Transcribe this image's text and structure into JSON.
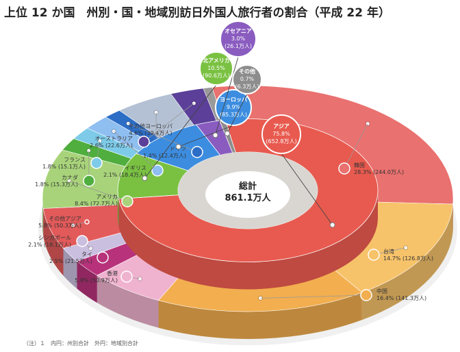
{
  "title": "上位 12 か国　州別・国・地域別訪日外国人旅行者の割合（平成 22 年）",
  "note": "（注）１　内円：州別合計　外円：地域別合計",
  "chart_data": {
    "type": "pie",
    "center_label": [
      "総計",
      "861.1万人"
    ],
    "outer": [
      {
        "name": "韓国",
        "pct": "28.3%",
        "count": "(244.0万人)",
        "value": 28.3,
        "color": "#e9716f"
      },
      {
        "name": "台湾",
        "pct": "14.7%",
        "count": "(126.8万人)",
        "value": 14.7,
        "color": "#f7c36a"
      },
      {
        "name": "中国",
        "pct": "16.4%",
        "count": "(141.3万人)",
        "value": 16.4,
        "color": "#f2ae4f"
      },
      {
        "name": "香港",
        "pct": "5.9%",
        "count": "(50.9万人)",
        "value": 5.9,
        "color": "#f0b3cf"
      },
      {
        "name": "タイ",
        "pct": "2.5%",
        "count": "(21.5万人)",
        "value": 2.5,
        "color": "#b8327b"
      },
      {
        "name": "シンガポール",
        "pct": "2.1%",
        "count": "(18.1万人)",
        "value": 2.1,
        "color": "#cbbfe0"
      },
      {
        "name": "その他アジア",
        "pct": "5.8%",
        "count": "(50.3万人)",
        "value": 5.8,
        "color": "#e25a5a"
      },
      {
        "name": "アメリカ",
        "pct": "8.4%",
        "count": "(72.7万人)",
        "value": 8.4,
        "color": "#a8d37a"
      },
      {
        "name": "カナダ",
        "pct": "1.8%",
        "count": "(15.3万人)",
        "value": 1.8,
        "color": "#4fae3e"
      },
      {
        "name": "フランス",
        "pct": "1.8%",
        "count": "(15.1万人)",
        "value": 1.8,
        "color": "#7dcbe8"
      },
      {
        "name": "イギリス",
        "pct": "2.1%",
        "count": "(18.4万人)",
        "value": 2.1,
        "color": "#8fbef0"
      },
      {
        "name": "ドイツ",
        "pct": "1.4%",
        "count": "(12.4万人)",
        "value": 1.4,
        "color": "#2c6dc6"
      },
      {
        "name": "その他ヨーロッパ",
        "pct": "4.6%",
        "count": "(39.4万人)",
        "value": 4.6,
        "color": "#b4c1d4"
      },
      {
        "name": "オーストラリア",
        "pct": "2.6%",
        "count": "(22.6万人)",
        "value": 2.6,
        "color": "#5b3f98"
      },
      {
        "name": "その他",
        "pct": "0.7%",
        "count": "(6.3万人)",
        "value": 0.7,
        "color": "#9a9a9a"
      }
    ],
    "inner": [
      {
        "name": "アジア",
        "pct": "75.8%",
        "count": "(652.8万人)",
        "value": 75.8,
        "color": "#e85a4f"
      },
      {
        "name": "北アメリカ",
        "pct": "10.5%",
        "count": "(90.6万人)",
        "value": 10.5,
        "color": "#7ac142"
      },
      {
        "name": "ヨーロッパ",
        "pct": "9.9%",
        "count": "(85.3万人)",
        "value": 9.9,
        "color": "#3c8de0"
      },
      {
        "name": "オセアニア",
        "pct": "3.0%",
        "count": "(26.1万人)",
        "value": 3.0,
        "color": "#8a5cc0"
      },
      {
        "name": "その他",
        "pct": "0.7%",
        "count": "(6.3万人)",
        "value": 0.7,
        "color": "#8d8d8d"
      }
    ]
  }
}
